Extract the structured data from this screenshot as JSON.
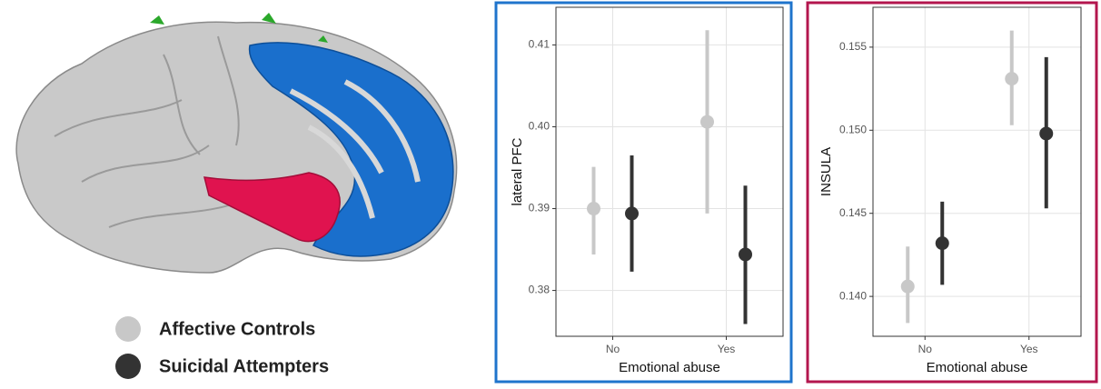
{
  "chart_data": [
    {
      "type": "pointrange",
      "xlabel": "Emotional abuse",
      "ylabel": "lateral PFC",
      "categories": [
        "No",
        "Yes"
      ],
      "ylim": [
        0.3744,
        0.4146
      ],
      "yticks": [
        0.38,
        0.39,
        {
          "value": 0.4,
          "label": "0.40"
        },
        0.41
      ],
      "grid": true,
      "border_color": "#1f74cc",
      "series": [
        {
          "name": "Affective Controls",
          "color": "#c8c8c8",
          "values": [
            0.39,
            0.4006
          ],
          "lower": [
            0.3844,
            0.3894
          ],
          "upper": [
            0.3951,
            0.4118
          ]
        },
        {
          "name": "Suicidal Attempters",
          "color": "#333333",
          "values": [
            0.3894,
            0.3844
          ],
          "lower": [
            0.3823,
            0.3759
          ],
          "upper": [
            0.3965,
            0.3928
          ]
        }
      ]
    },
    {
      "type": "pointrange",
      "xlabel": "Emotional abuse",
      "ylabel": "INSULA",
      "categories": [
        "No",
        "Yes"
      ],
      "ylim": [
        0.1376,
        0.1574
      ],
      "yticks": [
        {
          "value": 0.14,
          "label": "0.140"
        },
        0.145,
        {
          "value": 0.15,
          "label": "0.150"
        },
        0.155
      ],
      "grid": true,
      "border_color": "#b3164e",
      "series": [
        {
          "color": "#c8c8c8",
          "values": [
            0.1406,
            0.1531
          ],
          "lower": [
            0.1384,
            0.1503
          ],
          "upper": [
            0.143,
            0.156
          ]
        },
        {
          "color": "#333333",
          "values": [
            0.1432,
            0.1498
          ],
          "lower": [
            0.1407,
            0.1453
          ],
          "upper": [
            0.1457,
            0.1544
          ]
        }
      ]
    }
  ]
}
